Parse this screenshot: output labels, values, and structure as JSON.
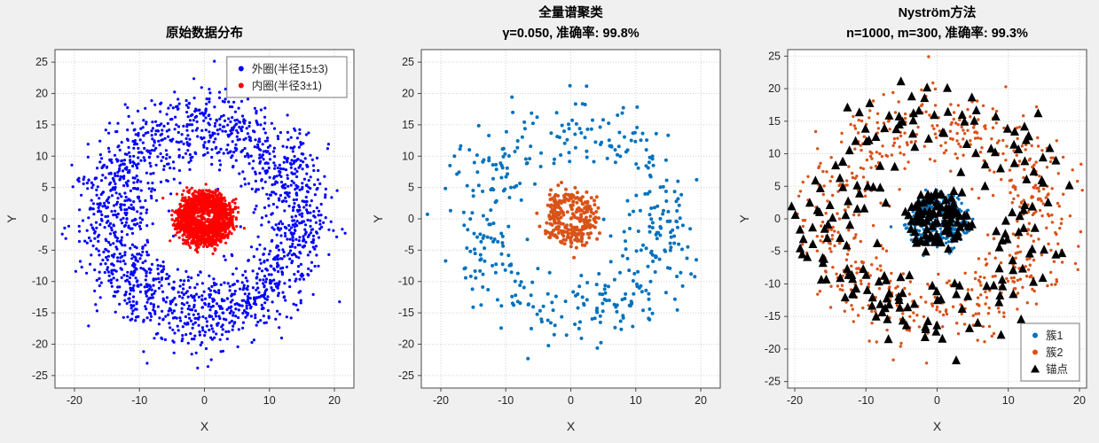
{
  "figure": {
    "background": "#f0f0f0",
    "plot_background": "#ffffff",
    "axis_color": "#4a4a4a",
    "grid_color": "#d2d2d2",
    "text_color": "#262626",
    "title_color": "#000000"
  },
  "chart_data": [
    {
      "type": "scatter",
      "title_lines": [
        "原始数据分布"
      ],
      "xlabel": "X",
      "ylabel": "Y",
      "xlim": [
        -23,
        23
      ],
      "ylim": [
        -27,
        27
      ],
      "xticks": [
        -20,
        -10,
        0,
        10,
        20
      ],
      "yticks": [
        -25,
        -20,
        -15,
        -10,
        -5,
        0,
        5,
        10,
        15,
        20,
        25
      ],
      "grid": true,
      "legend": {
        "position": "top-right",
        "entries": [
          {
            "label": "外圈(半径15±3)",
            "marker": "dot",
            "color": "#0000ff"
          },
          {
            "label": "内圈(半径3±1)",
            "marker": "dot",
            "color": "#ff0000"
          }
        ]
      },
      "series": [
        {
          "name": "outer-ring",
          "marker": "dot",
          "color": "#0000ff",
          "size": 1.6,
          "gen": {
            "kind": "ring",
            "seed": 101,
            "parts": [
              {
                "n": 1800,
                "r_mean": 15,
                "r_sd": 3
              }
            ]
          }
        },
        {
          "name": "inner-cluster",
          "marker": "dot",
          "color": "#ff0000",
          "size": 1.6,
          "gen": {
            "kind": "ring",
            "seed": 202,
            "parts": [
              {
                "n": 1400,
                "r_mean": 3,
                "r_sd": 1
              }
            ]
          }
        }
      ]
    },
    {
      "type": "scatter",
      "title_lines": [
        "全量谱聚类",
        "γ=0.050, 准确率: 99.8%"
      ],
      "params": {
        "gamma": 0.05,
        "accuracy": "99.8%"
      },
      "xlabel": "X",
      "ylabel": "Y",
      "xlim": [
        -23,
        23
      ],
      "ylim": [
        -27,
        27
      ],
      "xticks": [
        -20,
        -10,
        0,
        10,
        20
      ],
      "yticks": [
        -25,
        -20,
        -15,
        -10,
        -5,
        0,
        5,
        10,
        15,
        20,
        25
      ],
      "grid": true,
      "legend": null,
      "series": [
        {
          "name": "cluster-outer",
          "marker": "dot",
          "color": "#0072bd",
          "size": 2.0,
          "gen": {
            "kind": "ring",
            "seed": 303,
            "parts": [
              {
                "n": 430,
                "r_mean": 15,
                "r_sd": 3
              }
            ]
          }
        },
        {
          "name": "cluster-inner",
          "marker": "dot",
          "color": "#d95319",
          "size": 2.0,
          "gen": {
            "kind": "ring",
            "seed": 404,
            "parts": [
              {
                "n": 280,
                "r_mean": 3,
                "r_sd": 1
              }
            ]
          }
        }
      ]
    },
    {
      "type": "scatter",
      "title_lines": [
        "Nyström方法",
        "n=1000, m=300, 准确率: 99.3%"
      ],
      "params": {
        "n": 1000,
        "m": 300,
        "accuracy": "99.3%"
      },
      "xlabel": "X",
      "ylabel": "Y",
      "xlim": [
        -21,
        21
      ],
      "ylim": [
        -26,
        26
      ],
      "xticks": [
        -20,
        -10,
        0,
        10,
        20
      ],
      "yticks": [
        -25,
        -20,
        -15,
        -10,
        -5,
        0,
        5,
        10,
        15,
        20,
        25
      ],
      "grid": true,
      "legend": {
        "position": "bottom-right",
        "entries": [
          {
            "label": "簇1",
            "marker": "dot",
            "color": "#0072bd"
          },
          {
            "label": "簇2",
            "marker": "dot",
            "color": "#d95319"
          },
          {
            "label": "锚点",
            "marker": "triangle",
            "color": "#000000"
          }
        ]
      },
      "series": [
        {
          "name": "cluster-1",
          "marker": "dot",
          "color": "#0072bd",
          "size": 1.7,
          "gen": {
            "kind": "ring",
            "seed": 505,
            "parts": [
              {
                "n": 330,
                "r_mean": 3,
                "r_sd": 1
              }
            ]
          }
        },
        {
          "name": "cluster-2",
          "marker": "dot",
          "color": "#d95319",
          "size": 1.7,
          "gen": {
            "kind": "ring",
            "seed": 606,
            "parts": [
              {
                "n": 670,
                "r_mean": 15,
                "r_sd": 3
              }
            ]
          }
        },
        {
          "name": "anchors",
          "marker": "triangle",
          "color": "#000000",
          "size": 5,
          "gen": {
            "kind": "ring",
            "seed": 707,
            "parts": [
              {
                "n": 200,
                "r_mean": 15,
                "r_sd": 3
              },
              {
                "n": 100,
                "r_mean": 3,
                "r_sd": 1
              }
            ]
          }
        }
      ]
    }
  ]
}
